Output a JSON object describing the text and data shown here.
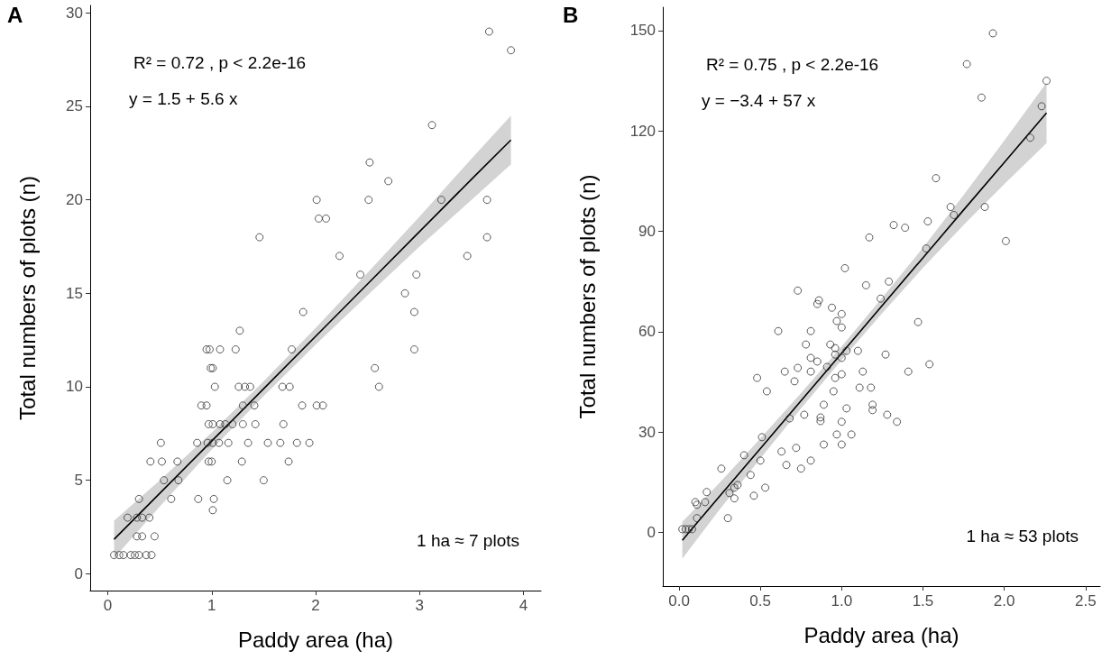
{
  "chart_data": [
    {
      "type": "scatter",
      "title": "A",
      "xlabel": "Paddy area (ha)",
      "ylabel": "Total numbers of plots (n)",
      "xlim": [
        -0.17,
        4.17
      ],
      "ylim": [
        -0.9,
        30.4
      ],
      "xticks": [
        0,
        1,
        2,
        3,
        4
      ],
      "yticks": [
        0,
        5,
        10,
        15,
        20,
        25,
        30
      ],
      "annotations": [
        "R² = 0.72 , p < 2.2e-16",
        "y = 1.5 + 5.6 x",
        "1 ha ≈ 7 plots"
      ],
      "series": [
        {
          "type": "scatter",
          "marker": "circle",
          "color": "#333333",
          "x": [
            0.06,
            0.11,
            0.15,
            0.22,
            0.26,
            0.3,
            0.37,
            0.42,
            0.28,
            0.33,
            0.45,
            0.19,
            0.28,
            0.33,
            0.4,
            0.3,
            0.61,
            0.87,
            1.02,
            1.01,
            0.54,
            0.68,
            1.15,
            1.5,
            0.41,
            0.52,
            0.67,
            0.97,
            1.0,
            1.29,
            1.74,
            0.51,
            0.86,
            0.96,
            1.01,
            1.07,
            1.16,
            1.35,
            1.54,
            1.66,
            1.82,
            1.94,
            0.97,
            1.01,
            1.08,
            1.13,
            1.2,
            1.3,
            1.42,
            1.69,
            0.9,
            0.95,
            1.3,
            1.41,
            1.87,
            2.01,
            2.07,
            1.03,
            1.26,
            1.32,
            1.37,
            1.68,
            1.75,
            2.61,
            0.99,
            1.01,
            2.57,
            0.95,
            0.98,
            1.08,
            1.23,
            1.77,
            2.95,
            1.27,
            1.88,
            2.95,
            2.86,
            2.43,
            2.97,
            2.23,
            3.46,
            1.46,
            3.65,
            2.03,
            2.1,
            2.01,
            2.51,
            3.21,
            3.65,
            2.7,
            2.52,
            3.12,
            3.67,
            3.88
          ],
          "values": [
            1,
            1,
            1,
            1,
            1,
            1,
            1,
            1,
            2,
            2,
            2,
            3,
            3,
            3,
            3,
            4,
            4,
            4,
            4,
            3.4,
            5,
            5,
            5,
            5,
            6,
            6,
            6,
            6,
            6,
            6,
            6,
            7,
            7,
            7,
            7,
            7,
            7,
            7,
            7,
            7,
            7,
            7,
            8,
            8,
            8,
            8,
            8,
            8,
            8,
            8,
            9,
            9,
            9,
            9,
            9,
            9,
            9,
            10,
            10,
            10,
            10,
            10,
            10,
            10,
            11,
            11,
            11,
            12,
            12,
            12,
            12,
            12,
            12,
            13,
            14,
            14,
            15,
            16,
            16,
            17,
            17,
            18,
            18,
            19,
            19,
            20,
            20,
            20,
            20,
            21,
            22,
            24,
            29,
            28
          ]
        },
        {
          "type": "line",
          "marker": "none",
          "line_style": "solid",
          "color": "#000000",
          "x": [
            0.06,
            0.5,
            1,
            1.5,
            2,
            2.5,
            3,
            3.5,
            3.88
          ],
          "values": [
            1.84,
            4.3,
            7.1,
            9.9,
            12.7,
            15.5,
            18.3,
            21.1,
            23.2
          ],
          "lower": [
            0.84,
            3.6,
            6.65,
            9.5,
            12.25,
            14.9,
            17.5,
            20.0,
            21.9
          ],
          "upper": [
            2.84,
            5.0,
            7.55,
            10.3,
            13.15,
            16.1,
            19.1,
            22.2,
            24.5
          ]
        }
      ]
    },
    {
      "type": "scatter",
      "title": "B",
      "xlabel": "Paddy area (ha)",
      "ylabel": "Total numbers of plots (n)",
      "xlim": [
        -0.1,
        2.59
      ],
      "ylim": [
        -16,
        157
      ],
      "xticks": [
        {
          "value": 0,
          "label": "0.0"
        },
        {
          "value": 0.5,
          "label": "0.5"
        },
        {
          "value": 1,
          "label": "1.0"
        },
        {
          "value": 1.5,
          "label": "1.5"
        },
        {
          "value": 2,
          "label": "2.0"
        },
        {
          "value": 2.5,
          "label": "2.5"
        }
      ],
      "yticks": [
        0,
        30,
        60,
        90,
        120,
        150
      ],
      "annotations": [
        "R² = 0.75 , p < 2.2e-16",
        "y = −3.4 + 57 x",
        "1 ha ≈ 53 plots"
      ],
      "series": [
        {
          "type": "scatter",
          "marker": "circle",
          "color": "#333333",
          "x": [
            0.02,
            0.04,
            0.06,
            0.08,
            0.73,
            0.86,
            0.85,
            0.94,
            1.0,
            0.97,
            1.0,
            0.61,
            0.81,
            0.78,
            0.93,
            0.96,
            0.96,
            1.03,
            1.1,
            1.0,
            0.81,
            0.85,
            0.73,
            0.65,
            0.81,
            0.91,
            1.13,
            1.0,
            0.96,
            0.48,
            0.71,
            0.54,
            0.95,
            1.11,
            1.18,
            1.19,
            1.19,
            0.89,
            1.03,
            1.28,
            1.34,
            0.77,
            0.68,
            0.87,
            0.87,
            1.0,
            0.97,
            1.06,
            0.89,
            1.0,
            0.51,
            0.72,
            0.63,
            0.4,
            0.81,
            0.5,
            0.66,
            0.75,
            0.26,
            0.44,
            0.36,
            0.34,
            0.31,
            0.53,
            0.46,
            0.17,
            0.16,
            0.1,
            0.11,
            0.11,
            0.3,
            0.34,
            1.93,
            1.77,
            1.86,
            2.26,
            2.23,
            2.16,
            1.58,
            1.67,
            1.69,
            1.88,
            2.01,
            1.32,
            1.39,
            1.53,
            1.52,
            1.17,
            1.29,
            1.24,
            1.15,
            1.47,
            1.27,
            1.54,
            1.41,
            1.02
          ],
          "values": [
            1,
            1,
            1,
            1,
            72.3,
            69.4,
            68.3,
            67.2,
            65.3,
            63.2,
            61.3,
            60.2,
            60.2,
            56.2,
            56.2,
            55.1,
            53.2,
            54.3,
            54.3,
            52.2,
            52.2,
            51.1,
            49.2,
            48.1,
            48.1,
            49.5,
            48.1,
            47.3,
            46.2,
            46.2,
            45.2,
            42.2,
            42.2,
            43.3,
            43.3,
            38.2,
            36.6,
            38.2,
            37.1,
            35.2,
            33.1,
            35.2,
            34.1,
            34.4,
            33.3,
            33.1,
            29.3,
            29.3,
            26.3,
            26.3,
            28.5,
            25.3,
            24.2,
            23.1,
            21.5,
            21.5,
            20.2,
            19.1,
            19.1,
            17.2,
            14.2,
            13.4,
            11.8,
            13.4,
            11.0,
            12.1,
            9.1,
            9.1,
            8.3,
            4.3,
            4.3,
            10.2,
            149.2,
            140,
            130,
            135,
            127.4,
            118,
            105.9,
            97.3,
            94.9,
            97.3,
            87.1,
            91.9,
            91.1,
            93,
            84.9,
            88.2,
            75,
            69.9,
            73.9,
            62.9,
            53.2,
            50.3,
            48.1,
            79
          ]
        },
        {
          "type": "line",
          "marker": "none",
          "line_style": "solid",
          "color": "#000000",
          "x": [
            0.02,
            0.25,
            0.5,
            0.75,
            1,
            1.25,
            1.5,
            1.75,
            2,
            2.26
          ],
          "values": [
            -2.3,
            10.9,
            25.1,
            39.4,
            53.6,
            67.9,
            82.1,
            96.4,
            110.6,
            125.4
          ],
          "lower": [
            -7.8,
            6.9,
            22.1,
            37.1,
            51.6,
            65.6,
            79.1,
            91.9,
            104.1,
            116.4
          ],
          "upper": [
            3.2,
            14.9,
            28.1,
            41.7,
            55.6,
            70.2,
            85.1,
            100.9,
            117.1,
            134.4
          ]
        }
      ]
    }
  ]
}
